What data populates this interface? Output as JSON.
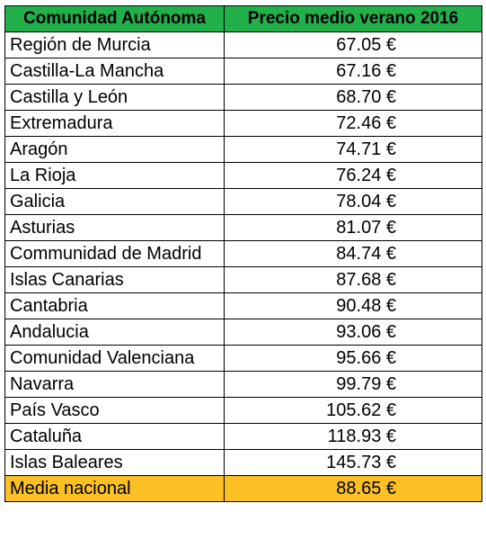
{
  "table": {
    "headers": [
      "Comunidad Autónoma",
      "Precio medio verano 2016"
    ],
    "rows": [
      {
        "region": "Región de Murcia",
        "price": "67.05 €"
      },
      {
        "region": "Castilla-La Mancha",
        "price": "67.16 €"
      },
      {
        "region": "Castilla y León",
        "price": "68.70 €"
      },
      {
        "region": "Extremadura",
        "price": "72.46 €"
      },
      {
        "region": "Aragón",
        "price": "74.71 €"
      },
      {
        "region": "La Rioja",
        "price": "76.24 €"
      },
      {
        "region": "Galicia",
        "price": "78.04 €"
      },
      {
        "region": "Asturias",
        "price": "81.07 €"
      },
      {
        "region": "Communidad de Madrid",
        "price": "84.74 €"
      },
      {
        "region": "Islas Canarias",
        "price": "87.68 €"
      },
      {
        "region": "Cantabria",
        "price": "90.48 €"
      },
      {
        "region": "Andalucia",
        "price": "93.06 €"
      },
      {
        "region": "Comunidad Valenciana",
        "price": "95.66 €"
      },
      {
        "region": "Navarra",
        "price": "99.79 €"
      },
      {
        "region": "País Vasco",
        "price": "105.62 €"
      },
      {
        "region": "Cataluña",
        "price": "118.93 €"
      },
      {
        "region": "Islas Baleares",
        "price": "145.73 €"
      }
    ],
    "footer": {
      "region": "Media nacional",
      "price": "88.65 €"
    }
  },
  "colors": {
    "header_background": "#22b04b",
    "footer_background": "#fbc024",
    "border": "#000000"
  }
}
